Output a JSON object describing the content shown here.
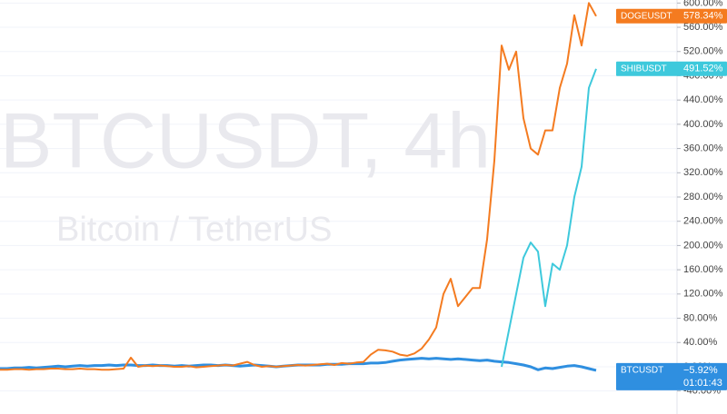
{
  "chart_data": {
    "type": "line",
    "watermark_title": "BTCUSDT, 4h",
    "watermark_subtitle": "Bitcoin / TetherUS",
    "countdown": "01:01:43",
    "ylim": [
      -45,
      605
    ],
    "yticks": [
      {
        "value": -40,
        "label": "-40.00%"
      },
      {
        "value": 0,
        "label": "0.00%"
      },
      {
        "value": 40,
        "label": "40.00%"
      },
      {
        "value": 80,
        "label": "80.00%"
      },
      {
        "value": 120,
        "label": "120.00%"
      },
      {
        "value": 160,
        "label": "160.00%"
      },
      {
        "value": 200,
        "label": "200.00%"
      },
      {
        "value": 240,
        "label": "240.00%"
      },
      {
        "value": 280,
        "label": "280.00%"
      },
      {
        "value": 320,
        "label": "320.00%"
      },
      {
        "value": 360,
        "label": "360.00%"
      },
      {
        "value": 400,
        "label": "400.00%"
      },
      {
        "value": 440,
        "label": "440.00%"
      },
      {
        "value": 480,
        "label": "480.00%"
      },
      {
        "value": 520,
        "label": "520.00%"
      },
      {
        "value": 560,
        "label": "560.00%"
      },
      {
        "value": 600,
        "label": "600.00%"
      }
    ],
    "grid": true,
    "series": [
      {
        "name": "BTCUSDT",
        "color": "#2f8fe0",
        "last_value_label": "−5.92%",
        "values": [
          -3,
          -3,
          -2,
          -2,
          -1,
          -2,
          -1,
          0,
          1,
          0,
          1,
          2,
          1,
          2,
          2,
          3,
          2,
          3,
          3,
          2,
          2,
          3,
          2,
          2,
          1,
          2,
          1,
          2,
          3,
          3,
          2,
          3,
          2,
          1,
          2,
          3,
          2,
          1,
          0,
          1,
          2,
          3,
          3,
          3,
          3,
          4,
          4,
          4,
          5,
          5,
          5,
          6,
          6,
          7,
          9,
          11,
          12,
          13,
          14,
          13,
          14,
          13,
          12,
          13,
          12,
          11,
          10,
          11,
          9,
          8,
          7,
          5,
          3,
          0,
          -5,
          -2,
          -3,
          -1,
          1,
          2,
          0,
          -3,
          -5.92
        ]
      },
      {
        "name": "DOGEUSDT",
        "color": "#f47b20",
        "last_value_label": "578.34%",
        "values": [
          -5,
          -5,
          -4,
          -4,
          -5,
          -4,
          -4,
          -3,
          -3,
          -4,
          -4,
          -3,
          -4,
          -4,
          -5,
          -5,
          -4,
          -3,
          15,
          0,
          2,
          1,
          2,
          1,
          0,
          0,
          1,
          -1,
          0,
          1,
          2,
          3,
          2,
          5,
          8,
          3,
          0,
          1,
          0,
          1,
          2,
          3,
          2,
          3,
          4,
          5,
          3,
          6,
          5,
          7,
          8,
          20,
          28,
          27,
          25,
          20,
          18,
          22,
          30,
          45,
          65,
          120,
          145,
          100,
          115,
          130,
          130,
          210,
          340,
          530,
          490,
          520,
          410,
          360,
          350,
          390,
          390,
          460,
          500,
          580,
          530,
          600,
          578.34
        ]
      },
      {
        "name": "SHIBUSDT",
        "color": "#3ec9dc",
        "last_value_label": "491.52%",
        "values": [
          null,
          null,
          null,
          null,
          null,
          null,
          null,
          null,
          null,
          null,
          null,
          null,
          null,
          null,
          null,
          null,
          null,
          null,
          null,
          null,
          null,
          null,
          null,
          null,
          null,
          null,
          null,
          null,
          null,
          null,
          null,
          null,
          null,
          null,
          null,
          null,
          null,
          null,
          null,
          null,
          null,
          null,
          null,
          null,
          null,
          null,
          null,
          null,
          null,
          null,
          null,
          null,
          null,
          null,
          null,
          null,
          null,
          null,
          null,
          null,
          null,
          null,
          null,
          null,
          null,
          null,
          null,
          null,
          null,
          0,
          60,
          120,
          180,
          205,
          190,
          100,
          170,
          160,
          200,
          280,
          330,
          460,
          491.52
        ]
      }
    ]
  }
}
